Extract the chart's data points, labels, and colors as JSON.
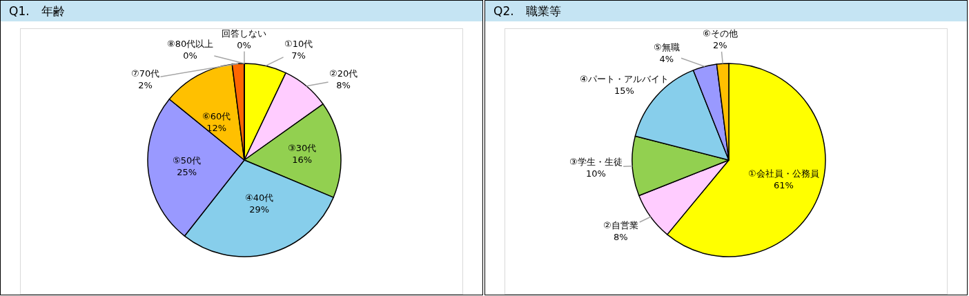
{
  "chart_data": [
    {
      "type": "pie",
      "title": "Q1.　年齢",
      "categories": [
        "①10代",
        "②20代",
        "③30代",
        "④40代",
        "⑤50代",
        "⑥60代",
        "⑦70代",
        "⑧80代以上",
        "回答しない"
      ],
      "values": [
        7,
        8,
        16,
        29,
        25,
        12,
        2,
        0,
        0
      ],
      "value_labels": [
        "7%",
        "8%",
        "16%",
        "29%",
        "25%",
        "12%",
        "2%",
        "0%",
        "0%"
      ],
      "colors": [
        "#ffff00",
        "#ffccff",
        "#92d050",
        "#87ceeb",
        "#9999ff",
        "#ffc000",
        "#ff6600",
        "#c00000",
        "#000000"
      ]
    },
    {
      "type": "pie",
      "title": "Q2.　職業等",
      "categories": [
        "①会社員・公務員",
        "②自営業",
        "③学生・生徒",
        "④パート・アルバイト",
        "⑤無職",
        "⑥その他"
      ],
      "values": [
        61,
        8,
        10,
        15,
        4,
        2
      ],
      "value_labels": [
        "61%",
        "8%",
        "10%",
        "15%",
        "4%",
        "2%"
      ],
      "colors": [
        "#ffff00",
        "#ffccff",
        "#92d050",
        "#87ceeb",
        "#9999ff",
        "#ffc000"
      ]
    }
  ]
}
